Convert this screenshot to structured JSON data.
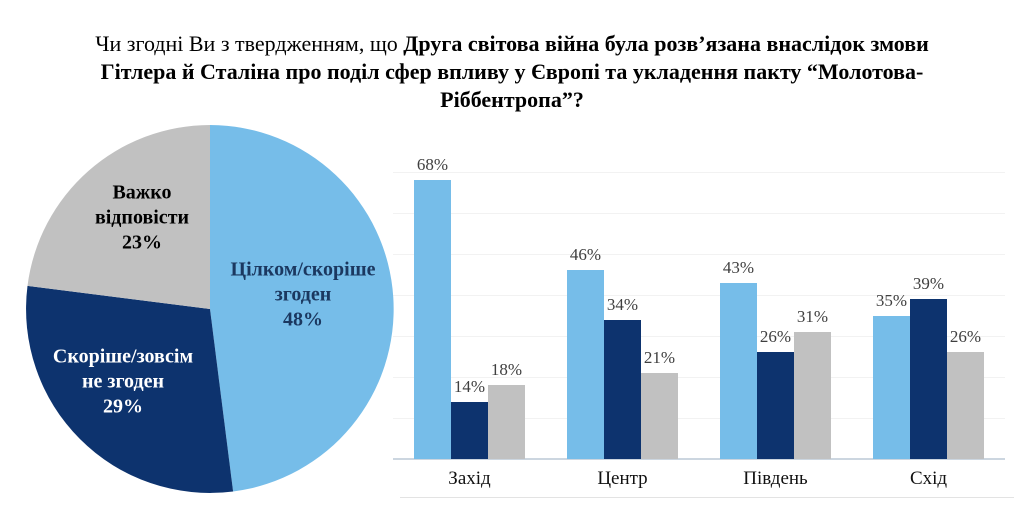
{
  "title": {
    "line1_regular": "Чи згодні Ви з твердженням, що ",
    "line1_bold": "Друга світова війна була розв’язана внаслідок змови",
    "line2_bold": "Гітлера й Сталіна про поділ сфер впливу у Європі та укладення пакту “Молотова-",
    "line3_bold": "Ріббентропа”?"
  },
  "palette": {
    "agree": "#76BDE9",
    "disagree": "#0D336E",
    "neutral": "#C1C1C1",
    "axis_line": "#CCD6E0",
    "gridline": "#F2F2F2",
    "value_label_text": "#3F3F3F"
  },
  "chart_data": [
    {
      "type": "pie",
      "direction": "clockwise",
      "start_angle_deg": 0,
      "slices": [
        {
          "label": "Цілком/скоріше згоден",
          "value": 48,
          "color_key": "agree",
          "display": "Цілком/скоріше\nзгоден\n48%",
          "text_color": "#1B3860"
        },
        {
          "label": "Скоріше/зовсім не згоден",
          "value": 29,
          "color_key": "disagree",
          "display": "Скоріше/зовсім\nне згоден\n29%",
          "text_color": "#FFFFFF"
        },
        {
          "label": "Важко відповісти",
          "value": 23,
          "color_key": "neutral",
          "display": "Важко\nвідповісти\n23%",
          "text_color": "#000000"
        }
      ]
    },
    {
      "type": "bar",
      "categories": [
        "Захід",
        "Центр",
        "Південь",
        "Схід"
      ],
      "series": [
        {
          "name": "Цілком/скоріше згоден",
          "color_key": "agree",
          "values": [
            68,
            46,
            43,
            35
          ]
        },
        {
          "name": "Скоріше/зовсім не згоден",
          "color_key": "disagree",
          "values": [
            14,
            34,
            26,
            39
          ]
        },
        {
          "name": "Важко відповісти",
          "color_key": "neutral",
          "values": [
            18,
            21,
            31,
            26
          ]
        }
      ],
      "value_suffix": "%",
      "ylim": [
        0,
        70
      ],
      "grid_step": 10,
      "grid": true,
      "legend": "none"
    }
  ]
}
